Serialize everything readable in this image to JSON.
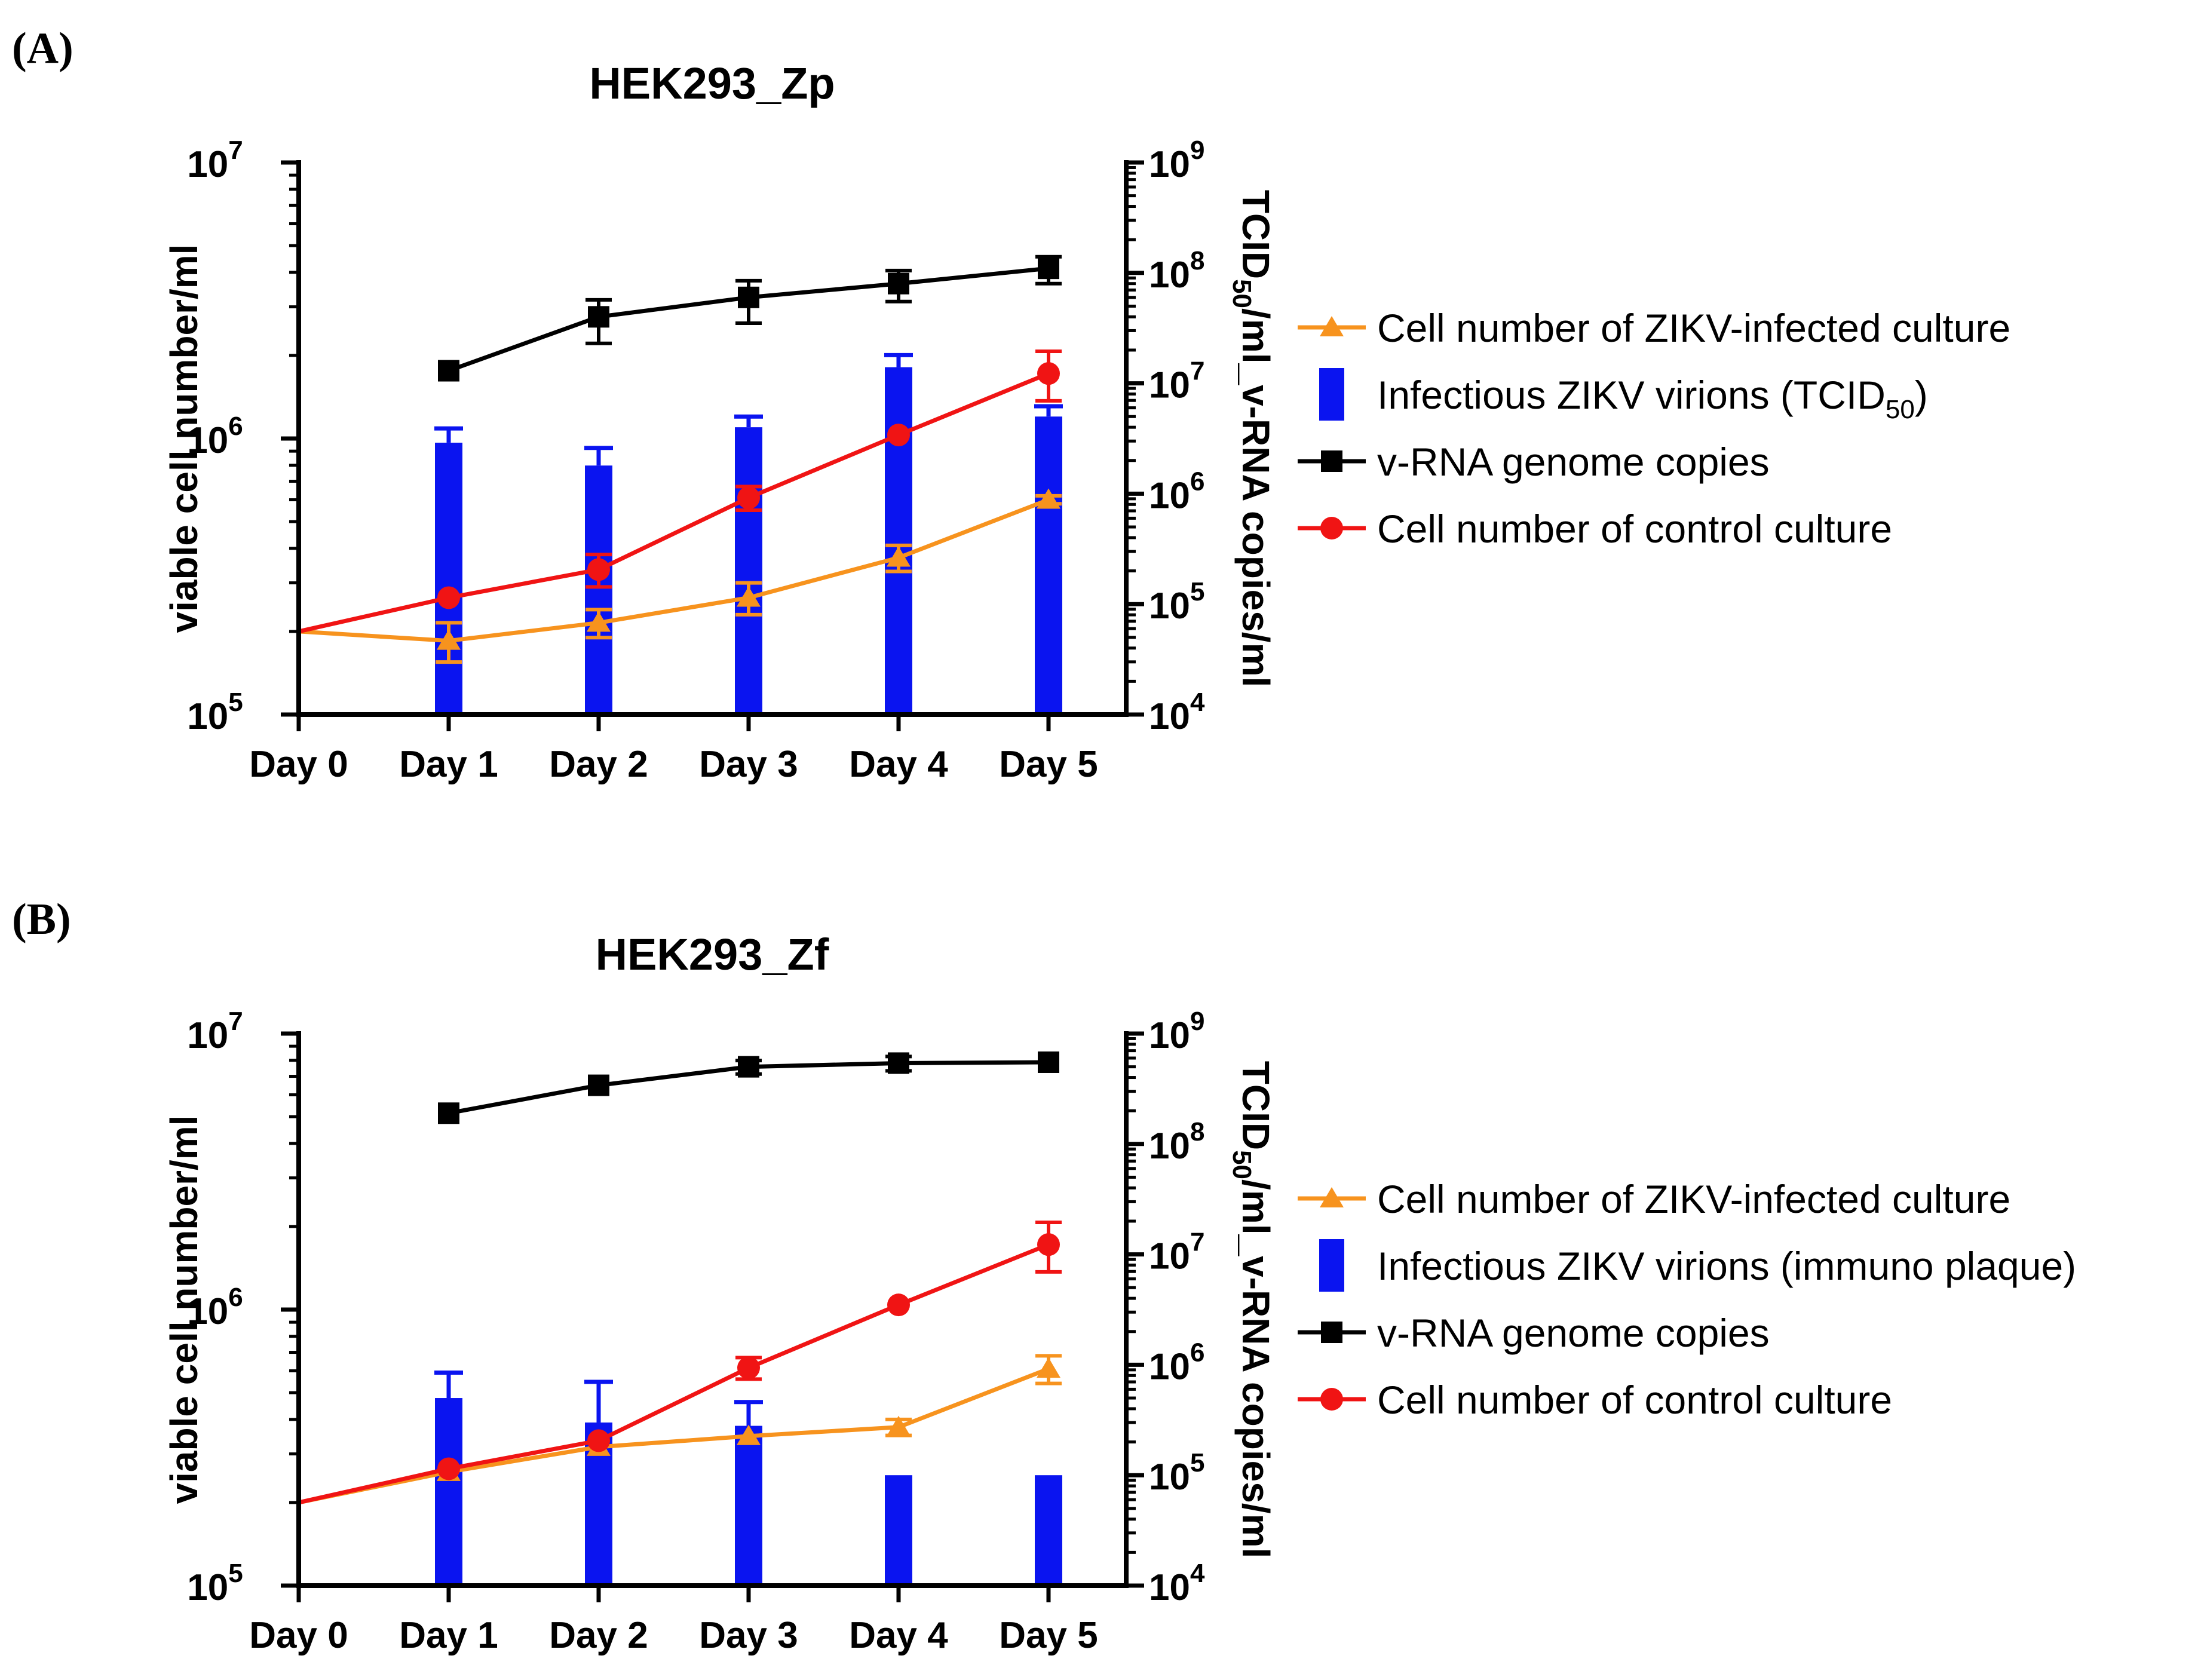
{
  "chart_data": [
    {
      "type": "line+bar",
      "panel_label": "(A)",
      "title": "HEK293_Zp",
      "ylabel_left": "viable cell number/ml",
      "ylabel_right_parts": [
        "TCID",
        "50",
        "/ml_v-RNA copies/ml"
      ],
      "categories": [
        "Day 0",
        "Day 1",
        "Day 2",
        "Day 3",
        "Day 4",
        "Day 5"
      ],
      "yscale": "log",
      "ylim_left": [
        100000,
        10000000
      ],
      "ylim_right": [
        10000,
        1000000000
      ],
      "y_ticks_left": [
        {
          "base": "10",
          "exp": "5"
        },
        {
          "base": "10",
          "exp": "6"
        },
        {
          "base": "10",
          "exp": "7"
        }
      ],
      "y_ticks_right": [
        {
          "base": "10",
          "exp": "4"
        },
        {
          "base": "10",
          "exp": "5"
        },
        {
          "base": "10",
          "exp": "6"
        },
        {
          "base": "10",
          "exp": "7"
        },
        {
          "base": "10",
          "exp": "8"
        },
        {
          "base": "10",
          "exp": "9"
        }
      ],
      "series": [
        {
          "name": "Cell number of ZIKV-infected culture",
          "legend_parts": [
            "Cell number of ZIKV-infected culture"
          ],
          "kind": "line",
          "marker": "triangle",
          "axis": "left",
          "color": "#F7931E",
          "values": [
            200000,
            185000,
            215000,
            265000,
            370000,
            600000
          ],
          "errors": [
            0,
            30000,
            25000,
            35000,
            40000,
            20000
          ]
        },
        {
          "name": "Infectious ZIKV virions (TCID50)",
          "legend_parts": [
            "Infectious ZIKV virions (TCID",
            "50",
            ")"
          ],
          "kind": "bar",
          "axis": "right",
          "color": "#0A14F0",
          "values": [
            null,
            2900000,
            1800000,
            4000000,
            14000000,
            5000000
          ],
          "errors": [
            null,
            1000000,
            800000,
            1000000,
            4000000,
            1200000
          ]
        },
        {
          "name": "v-RNA genome copies",
          "legend_parts": [
            "v-RNA genome copies"
          ],
          "kind": "line",
          "marker": "square",
          "axis": "right",
          "color": "#000000",
          "values": [
            null,
            13000000,
            40000000,
            60000000,
            80000000,
            110000000
          ],
          "errors": [
            null,
            0,
            17000000,
            25000000,
            25000000,
            30000000
          ]
        },
        {
          "name": "Cell number of control culture",
          "legend_parts": [
            "Cell number of control culture"
          ],
          "kind": "line",
          "marker": "circle",
          "axis": "left",
          "color": "#F01414",
          "values": [
            200000,
            265000,
            335000,
            610000,
            1030000,
            1720000
          ],
          "errors": [
            0,
            0,
            45000,
            60000,
            0,
            350000
          ]
        }
      ],
      "legend_order": [
        0,
        1,
        2,
        3
      ]
    },
    {
      "type": "line+bar",
      "panel_label": "(B)",
      "title": "HEK293_Zf",
      "ylabel_left": "viable cell number/ml",
      "ylabel_right_parts": [
        "TCID",
        "50",
        "/ml_v-RNA copies/ml"
      ],
      "categories": [
        "Day 0",
        "Day 1",
        "Day 2",
        "Day 3",
        "Day 4",
        "Day 5"
      ],
      "yscale": "log",
      "ylim_left": [
        100000,
        10000000
      ],
      "ylim_right": [
        10000,
        1000000000
      ],
      "y_ticks_left": [
        {
          "base": "10",
          "exp": "5"
        },
        {
          "base": "10",
          "exp": "6"
        },
        {
          "base": "10",
          "exp": "7"
        }
      ],
      "y_ticks_right": [
        {
          "base": "10",
          "exp": "4"
        },
        {
          "base": "10",
          "exp": "5"
        },
        {
          "base": "10",
          "exp": "6"
        },
        {
          "base": "10",
          "exp": "7"
        },
        {
          "base": "10",
          "exp": "8"
        },
        {
          "base": "10",
          "exp": "9"
        }
      ],
      "series": [
        {
          "name": "Cell number of ZIKV-infected culture",
          "legend_parts": [
            "Cell number of ZIKV-infected culture"
          ],
          "kind": "line",
          "marker": "triangle",
          "axis": "left",
          "color": "#F7931E",
          "values": [
            200000,
            258000,
            318000,
            348000,
            375000,
            610000
          ],
          "errors": [
            0,
            0,
            0,
            0,
            25000,
            70000
          ]
        },
        {
          "name": "Infectious ZIKV virions (immuno plaque)",
          "legend_parts": [
            "Infectious ZIKV virions (immuno plaque)"
          ],
          "kind": "bar",
          "axis": "right",
          "color": "#0A14F0",
          "values": [
            null,
            500000,
            300000,
            280000,
            100000,
            100000
          ],
          "errors": [
            null,
            350000,
            400000,
            180000,
            0,
            0
          ]
        },
        {
          "name": "v-RNA genome copies",
          "legend_parts": [
            "v-RNA genome copies"
          ],
          "kind": "line",
          "marker": "square",
          "axis": "right",
          "color": "#000000",
          "values": [
            null,
            190000000,
            340000000,
            500000000,
            540000000,
            550000000
          ],
          "errors": [
            null,
            0,
            0,
            70000000,
            80000000,
            0
          ]
        },
        {
          "name": "Cell number of control culture",
          "legend_parts": [
            "Cell number of control culture"
          ],
          "kind": "line",
          "marker": "circle",
          "axis": "left",
          "color": "#F01414",
          "values": [
            200000,
            265000,
            335000,
            615000,
            1040000,
            1720000
          ],
          "errors": [
            0,
            0,
            0,
            55000,
            0,
            350000
          ]
        }
      ],
      "legend_order": [
        0,
        1,
        2,
        3
      ]
    }
  ]
}
